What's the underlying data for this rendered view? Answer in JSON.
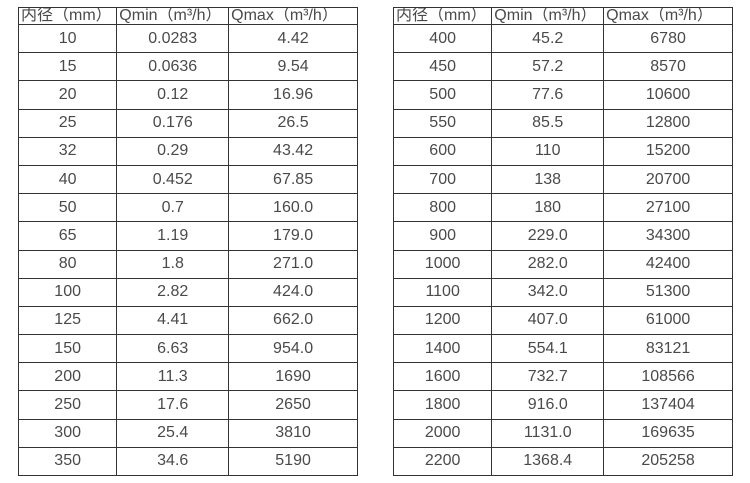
{
  "colors": {
    "background": "#ffffff",
    "table_border": "#333333",
    "text": "#4a4a4a"
  },
  "chart_data": [
    {
      "type": "table",
      "name": "flow-rate-table-left",
      "columns": [
        "内径（mm）",
        "Qmin（m³/h）",
        "Qmax（m³/h）"
      ],
      "rows": [
        [
          "10",
          "0.0283",
          "4.42"
        ],
        [
          "15",
          "0.0636",
          "9.54"
        ],
        [
          "20",
          "0.12",
          "16.96"
        ],
        [
          "25",
          "0.176",
          "26.5"
        ],
        [
          "32",
          "0.29",
          "43.42"
        ],
        [
          "40",
          "0.452",
          "67.85"
        ],
        [
          "50",
          "0.7",
          "160.0"
        ],
        [
          "65",
          "1.19",
          "179.0"
        ],
        [
          "80",
          "1.8",
          "271.0"
        ],
        [
          "100",
          "2.82",
          "424.0"
        ],
        [
          "125",
          "4.41",
          "662.0"
        ],
        [
          "150",
          "6.63",
          "954.0"
        ],
        [
          "200",
          "11.3",
          "1690"
        ],
        [
          "250",
          "17.6",
          "2650"
        ],
        [
          "300",
          "25.4",
          "3810"
        ],
        [
          "350",
          "34.6",
          "5190"
        ]
      ]
    },
    {
      "type": "table",
      "name": "flow-rate-table-right",
      "columns": [
        "内径（mm）",
        "Qmin（m³/h）",
        "Qmax（m³/h）"
      ],
      "rows": [
        [
          "400",
          "45.2",
          "6780"
        ],
        [
          "450",
          "57.2",
          "8570"
        ],
        [
          "500",
          "77.6",
          "10600"
        ],
        [
          "550",
          "85.5",
          "12800"
        ],
        [
          "600",
          "110",
          "15200"
        ],
        [
          "700",
          "138",
          "20700"
        ],
        [
          "800",
          "180",
          "27100"
        ],
        [
          "900",
          "229.0",
          "34300"
        ],
        [
          "1000",
          "282.0",
          "42400"
        ],
        [
          "1100",
          "342.0",
          "51300"
        ],
        [
          "1200",
          "407.0",
          "61000"
        ],
        [
          "1400",
          "554.1",
          "83121"
        ],
        [
          "1600",
          "732.7",
          "108566"
        ],
        [
          "1800",
          "916.0",
          "137404"
        ],
        [
          "2000",
          "1131.0",
          "169635"
        ],
        [
          "2200",
          "1368.4",
          "205258"
        ]
      ]
    }
  ]
}
